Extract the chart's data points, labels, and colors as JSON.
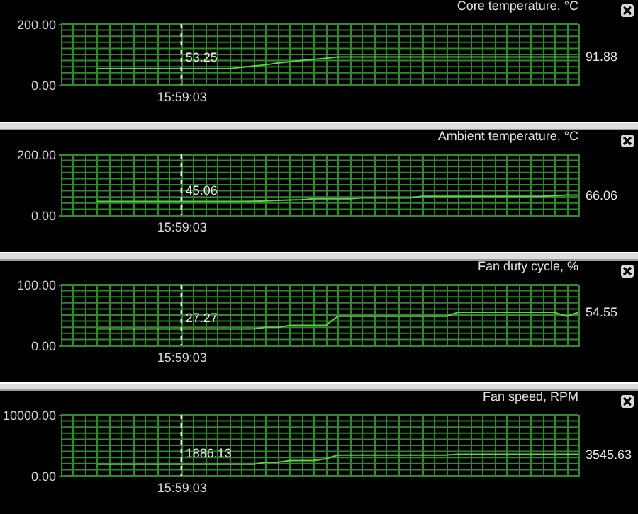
{
  "chart_data": [
    {
      "type": "line",
      "title": "Core temperature, °C",
      "color": "#5fd04a",
      "grid": true,
      "categories": [
        null,
        null,
        null,
        null,
        null,
        null,
        null,
        null,
        null,
        null,
        "15:59:03",
        null,
        null,
        null,
        null,
        null,
        null,
        null,
        null,
        null,
        null,
        null,
        null,
        null,
        null,
        null,
        null,
        null,
        null,
        null,
        null,
        null,
        null,
        null,
        null,
        null,
        null,
        null,
        null,
        null,
        null,
        null,
        null,
        null
      ],
      "values": [
        null,
        null,
        null,
        53.25,
        53.25,
        53.25,
        53.25,
        53.25,
        53.25,
        53.25,
        53.25,
        53.25,
        53.25,
        53.25,
        53.25,
        58,
        62,
        66,
        72,
        76,
        80,
        84,
        88,
        91.88,
        91.88,
        91.88,
        91.88,
        91.88,
        91.88,
        91.88,
        91.88,
        91.88,
        91.88,
        91.88,
        91.88,
        91.88,
        91.88,
        91.88,
        91.88,
        91.88,
        91.88,
        91.88,
        91.88,
        91.88
      ],
      "value_labels": [
        null,
        null,
        null,
        null,
        null,
        null,
        null,
        null,
        null,
        null,
        "53.25",
        null,
        null,
        null,
        null,
        null,
        null,
        null,
        null,
        null,
        null,
        null,
        null,
        null,
        null,
        null,
        null,
        null,
        null,
        null,
        null,
        null,
        null,
        null,
        null,
        null,
        null,
        null,
        null,
        null,
        null,
        null,
        null,
        "91.88"
      ],
      "ylim": [
        0,
        200
      ],
      "yticks": [
        {
          "value": 0,
          "label": "0.00"
        },
        {
          "value": 20,
          "label": null
        },
        {
          "value": 40,
          "label": null
        },
        {
          "value": 60,
          "label": null
        },
        {
          "value": 80,
          "label": null
        },
        {
          "value": 100,
          "label": null
        },
        {
          "value": 120,
          "label": null
        },
        {
          "value": 140,
          "label": null
        },
        {
          "value": 160,
          "label": null
        },
        {
          "value": 180,
          "label": null
        },
        {
          "value": 200,
          "label": "200.00"
        }
      ],
      "ref_lines": [
        {
          "axis": "x",
          "value": "15:59:03",
          "color": "#ffffff",
          "line_style": "dashed"
        }
      ]
    },
    {
      "type": "line",
      "title": "Ambient temperature, °C",
      "color": "#5fd04a",
      "grid": true,
      "categories": [
        null,
        null,
        null,
        null,
        null,
        null,
        null,
        null,
        null,
        null,
        "15:59:03",
        null,
        null,
        null,
        null,
        null,
        null,
        null,
        null,
        null,
        null,
        null,
        null,
        null,
        null,
        null,
        null,
        null,
        null,
        null,
        null,
        null,
        null,
        null,
        null,
        null,
        null,
        null,
        null,
        null,
        null,
        null,
        null,
        null
      ],
      "values": [
        null,
        null,
        null,
        45.06,
        45.06,
        45.06,
        45.06,
        45.06,
        45.06,
        45.06,
        45.06,
        45.06,
        45.06,
        45.06,
        45.06,
        45.06,
        46,
        47,
        49,
        50,
        51,
        54,
        54,
        54,
        54,
        57,
        57,
        57,
        57,
        57,
        62,
        62,
        62,
        62,
        62,
        62,
        62,
        62,
        62,
        62,
        62,
        64,
        66,
        66.06
      ],
      "value_labels": [
        null,
        null,
        null,
        null,
        null,
        null,
        null,
        null,
        null,
        null,
        "45.06",
        null,
        null,
        null,
        null,
        null,
        null,
        null,
        null,
        null,
        null,
        null,
        null,
        null,
        null,
        null,
        null,
        null,
        null,
        null,
        null,
        null,
        null,
        null,
        null,
        null,
        null,
        null,
        null,
        null,
        null,
        null,
        null,
        "66.06"
      ],
      "ylim": [
        0,
        200
      ],
      "yticks": [
        {
          "value": 0,
          "label": "0.00"
        },
        {
          "value": 20,
          "label": null
        },
        {
          "value": 40,
          "label": null
        },
        {
          "value": 60,
          "label": null
        },
        {
          "value": 80,
          "label": null
        },
        {
          "value": 100,
          "label": null
        },
        {
          "value": 120,
          "label": null
        },
        {
          "value": 140,
          "label": null
        },
        {
          "value": 160,
          "label": null
        },
        {
          "value": 180,
          "label": null
        },
        {
          "value": 200,
          "label": "200.00"
        }
      ],
      "ref_lines": [
        {
          "axis": "x",
          "value": "15:59:03",
          "color": "#ffffff",
          "line_style": "dashed"
        }
      ]
    },
    {
      "type": "line",
      "title": "Fan duty cycle, %",
      "color": "#5fd04a",
      "grid": true,
      "categories": [
        null,
        null,
        null,
        null,
        null,
        null,
        null,
        null,
        null,
        null,
        "15:59:03",
        null,
        null,
        null,
        null,
        null,
        null,
        null,
        null,
        null,
        null,
        null,
        null,
        null,
        null,
        null,
        null,
        null,
        null,
        null,
        null,
        null,
        null,
        null,
        null,
        null,
        null,
        null,
        null,
        null,
        null,
        null,
        null,
        null
      ],
      "values": [
        null,
        null,
        null,
        27.27,
        27.27,
        27.27,
        27.27,
        27.27,
        27.27,
        27.27,
        27.27,
        27.27,
        27.27,
        27.27,
        27.27,
        27.27,
        27.27,
        30,
        30,
        33,
        33,
        33,
        33,
        48,
        48,
        48,
        48,
        48,
        48,
        48,
        48,
        48,
        48,
        54.55,
        54.55,
        54.55,
        54.55,
        54.55,
        54.55,
        54.55,
        54.55,
        54.55,
        48,
        54.55
      ],
      "value_labels": [
        null,
        null,
        null,
        null,
        null,
        null,
        null,
        null,
        null,
        null,
        "27.27",
        null,
        null,
        null,
        null,
        null,
        null,
        null,
        null,
        null,
        null,
        null,
        null,
        null,
        null,
        null,
        null,
        null,
        null,
        null,
        null,
        null,
        null,
        null,
        null,
        null,
        null,
        null,
        null,
        null,
        null,
        null,
        null,
        "54.55"
      ],
      "ylim": [
        0,
        100
      ],
      "yticks": [
        {
          "value": 0,
          "label": "0.00"
        },
        {
          "value": 10,
          "label": null
        },
        {
          "value": 20,
          "label": null
        },
        {
          "value": 30,
          "label": null
        },
        {
          "value": 40,
          "label": null
        },
        {
          "value": 50,
          "label": null
        },
        {
          "value": 60,
          "label": null
        },
        {
          "value": 70,
          "label": null
        },
        {
          "value": 80,
          "label": null
        },
        {
          "value": 90,
          "label": null
        },
        {
          "value": 100,
          "label": "100.00"
        }
      ],
      "ref_lines": [
        {
          "axis": "x",
          "value": "15:59:03",
          "color": "#ffffff",
          "line_style": "dashed"
        }
      ]
    },
    {
      "type": "line",
      "title": "Fan speed, RPM",
      "color": "#5fd04a",
      "grid": true,
      "categories": [
        null,
        null,
        null,
        null,
        null,
        null,
        null,
        null,
        null,
        null,
        "15:59:03",
        null,
        null,
        null,
        null,
        null,
        null,
        null,
        null,
        null,
        null,
        null,
        null,
        null,
        null,
        null,
        null,
        null,
        null,
        null,
        null,
        null,
        null,
        null,
        null,
        null,
        null,
        null,
        null,
        null,
        null,
        null,
        null,
        null
      ],
      "values": [
        null,
        null,
        null,
        1886.13,
        1886.13,
        1886.13,
        1886.13,
        1886.13,
        1886.13,
        1886.13,
        1886.13,
        1886.13,
        1886.13,
        1886.13,
        1886.13,
        1886.13,
        1886.13,
        2200,
        2200,
        2500,
        2500,
        2500,
        2800,
        3400,
        3400,
        3400,
        3400,
        3400,
        3400,
        3400,
        3400,
        3400,
        3400,
        3545.63,
        3545.63,
        3545.63,
        3545.63,
        3545.63,
        3545.63,
        3545.63,
        3545.63,
        3545.63,
        3545.63,
        3545.63
      ],
      "value_labels": [
        null,
        null,
        null,
        null,
        null,
        null,
        null,
        null,
        null,
        null,
        "1886.13",
        null,
        null,
        null,
        null,
        null,
        null,
        null,
        null,
        null,
        null,
        null,
        null,
        null,
        null,
        null,
        null,
        null,
        null,
        null,
        null,
        null,
        null,
        null,
        null,
        null,
        null,
        null,
        null,
        null,
        null,
        null,
        null,
        "3545.63"
      ],
      "ylim": [
        0,
        10000
      ],
      "yticks": [
        {
          "value": 0,
          "label": "0.00"
        },
        {
          "value": 1000,
          "label": null
        },
        {
          "value": 2000,
          "label": null
        },
        {
          "value": 3000,
          "label": null
        },
        {
          "value": 4000,
          "label": null
        },
        {
          "value": 5000,
          "label": null
        },
        {
          "value": 6000,
          "label": null
        },
        {
          "value": 7000,
          "label": null
        },
        {
          "value": 8000,
          "label": null
        },
        {
          "value": 9000,
          "label": null
        },
        {
          "value": 10000,
          "label": "10000.00"
        }
      ],
      "ref_lines": [
        {
          "axis": "x",
          "value": "15:59:03",
          "color": "#ffffff",
          "line_style": "dashed"
        }
      ]
    }
  ]
}
